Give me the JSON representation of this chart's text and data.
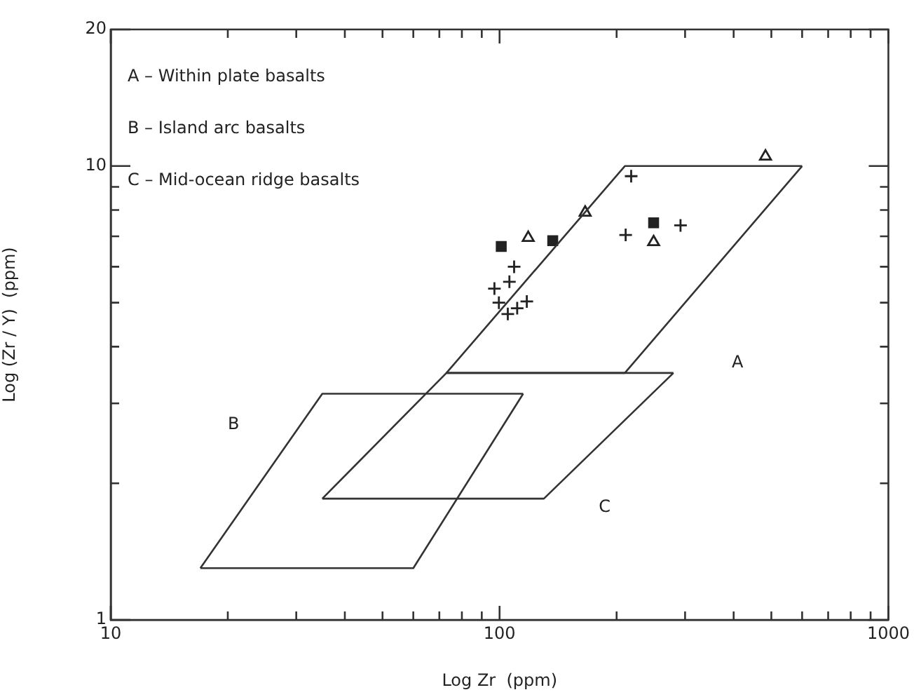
{
  "chart_data": {
    "type": "scatter",
    "xlabel": "Log Zr  (ppm)",
    "ylabel": "Log (Zr / Y)  (ppm)",
    "log": "xy",
    "grid": false,
    "legend": false,
    "xlim": [
      10,
      1000
    ],
    "ylim": [
      1,
      20
    ],
    "xticks": [
      10,
      {
        "value": 20,
        "label": null
      },
      {
        "value": 30,
        "label": null
      },
      {
        "value": 40,
        "label": null
      },
      {
        "value": 50,
        "label": null
      },
      {
        "value": 60,
        "label": null
      },
      {
        "value": 70,
        "label": null
      },
      {
        "value": 80,
        "label": null
      },
      {
        "value": 90,
        "label": null
      },
      100,
      {
        "value": 200,
        "label": null
      },
      {
        "value": 300,
        "label": null
      },
      {
        "value": 400,
        "label": null
      },
      {
        "value": 500,
        "label": null
      },
      {
        "value": 600,
        "label": null
      },
      {
        "value": 700,
        "label": null
      },
      {
        "value": 800,
        "label": null
      },
      {
        "value": 900,
        "label": null
      },
      1000
    ],
    "yticks": [
      1,
      {
        "value": 2,
        "label": null
      },
      {
        "value": 3,
        "label": null
      },
      {
        "value": 4,
        "label": null
      },
      {
        "value": 5,
        "label": null
      },
      {
        "value": 6,
        "label": null
      },
      {
        "value": 7,
        "label": null
      },
      {
        "value": 8,
        "label": null
      },
      {
        "value": 9,
        "label": null
      },
      10,
      20
    ],
    "series": [
      {
        "type": "line",
        "color": "#333333",
        "marker": "none",
        "x": [
          73,
          210,
          600
        ],
        "values": [
          3.5,
          10,
          10
        ]
      },
      {
        "type": "line",
        "color": "#333333",
        "marker": "none",
        "x": [
          73,
          210,
          600
        ],
        "values": [
          3.5,
          3.5,
          10
        ]
      },
      {
        "type": "line",
        "color": "#333333",
        "marker": "none",
        "x": [
          17,
          35,
          115
        ],
        "values": [
          1.3,
          3.15,
          3.15
        ]
      },
      {
        "type": "line",
        "color": "#333333",
        "marker": "none",
        "x": [
          17,
          60,
          115
        ],
        "values": [
          1.3,
          1.3,
          3.15
        ]
      },
      {
        "type": "line",
        "color": "#333333",
        "marker": "none",
        "x": [
          35,
          73,
          280
        ],
        "values": [
          1.85,
          3.5,
          3.5
        ]
      },
      {
        "type": "line",
        "color": "#333333",
        "marker": "none",
        "x": [
          35,
          130,
          280
        ],
        "values": [
          1.85,
          1.85,
          3.5
        ]
      },
      {
        "color": "#222222",
        "marker": "triangle",
        "x": [
          483,
          166
        ],
        "values": [
          10.5,
          7.9
        ]
      },
      {
        "color": "#222222",
        "marker": "square",
        "x": [
          101,
          137,
          249
        ],
        "values": [
          6.65,
          6.85,
          7.5
        ]
      },
      {
        "color": "#222222",
        "marker": "triangle",
        "x": [
          118.5,
          249
        ],
        "values": [
          6.95,
          6.8
        ]
      },
      {
        "color": "#222222",
        "marker": "cross",
        "x": [
          218,
          211,
          292
        ],
        "values": [
          9.5,
          7.05,
          7.4
        ]
      },
      {
        "color": "#222222",
        "marker": "cross",
        "x": [
          109,
          97,
          106,
          99.6,
          105,
          111,
          117.5
        ],
        "values": [
          6.0,
          5.37,
          5.56,
          5.0,
          4.72,
          4.86,
          5.03
        ]
      }
    ],
    "annotations": [
      "A – Within plate basalts",
      "B – Island arc basalts",
      "C – Mid-ocean ridge basalts",
      "A",
      "B",
      "C"
    ]
  }
}
